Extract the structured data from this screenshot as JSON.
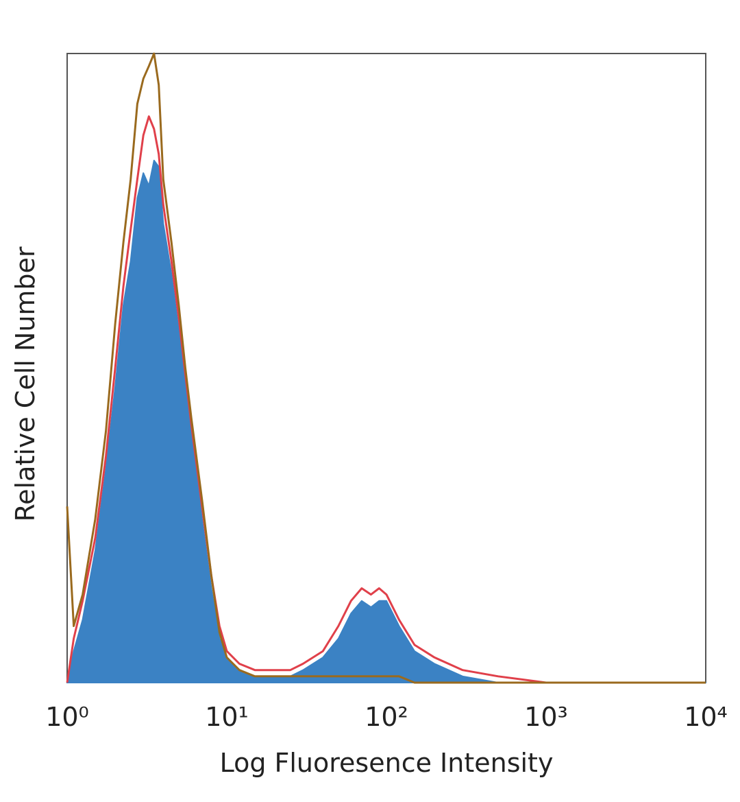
{
  "chart_data": {
    "type": "histogram-overlay",
    "xlabel": "Log Fluoresence Intensity",
    "ylabel": "Relative Cell Number",
    "xscale": "log",
    "xlim": [
      1,
      10000
    ],
    "ylim": [
      0,
      100
    ],
    "xticks": [
      {
        "value": 1,
        "label": "10⁰"
      },
      {
        "value": 10,
        "label": "10¹"
      },
      {
        "value": 100,
        "label": "10²"
      },
      {
        "value": 1000,
        "label": "10³"
      },
      {
        "value": 10000,
        "label": "10⁴"
      }
    ],
    "grid": false,
    "x": [
      1,
      1.1,
      1.25,
      1.5,
      1.75,
      2,
      2.25,
      2.5,
      2.75,
      3,
      3.25,
      3.5,
      3.75,
      4,
      4.5,
      5,
      5.5,
      6,
      7,
      8,
      9,
      10,
      12,
      15,
      20,
      25,
      30,
      40,
      50,
      60,
      70,
      80,
      90,
      100,
      120,
      150,
      200,
      300,
      500,
      1000,
      10000
    ],
    "series": [
      {
        "color": "#3b82c4",
        "filled": true,
        "values": [
          0,
          5,
          10,
          21,
          34,
          47,
          60,
          67,
          77,
          81,
          79,
          83,
          82,
          73,
          65,
          56,
          47,
          40,
          26,
          15,
          7,
          4,
          2,
          1,
          1,
          1,
          2,
          4,
          7,
          11,
          13,
          12,
          13,
          13,
          9,
          5,
          3,
          1,
          0,
          0,
          0
        ]
      },
      {
        "color": "#e0404a",
        "filled": false,
        "values": [
          0,
          7,
          13,
          23,
          36,
          50,
          63,
          72,
          80,
          87,
          90,
          88,
          84,
          76,
          67,
          58,
          49,
          41,
          28,
          17,
          9,
          5,
          3,
          2,
          2,
          2,
          3,
          5,
          9,
          13,
          15,
          14,
          15,
          14,
          10,
          6,
          4,
          2,
          1,
          0,
          0
        ]
      },
      {
        "color": "#9a6a1e",
        "filled": false,
        "values": [
          28,
          9,
          14,
          26,
          40,
          57,
          70,
          80,
          92,
          96,
          98,
          100,
          95,
          80,
          70,
          60,
          50,
          42,
          29,
          17,
          8,
          4,
          2,
          1,
          1,
          1,
          1,
          1,
          1,
          1,
          1,
          1,
          1,
          1,
          1,
          0,
          0,
          0,
          0,
          0,
          0
        ]
      }
    ]
  }
}
